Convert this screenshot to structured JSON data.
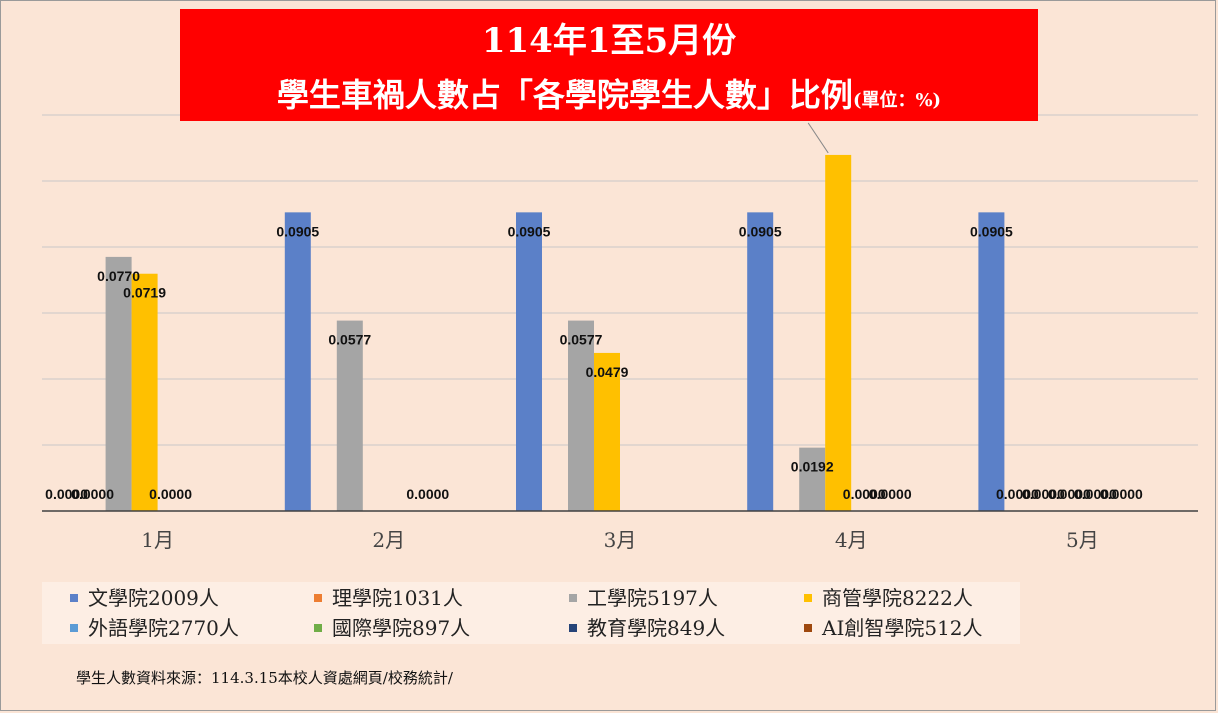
{
  "title": {
    "line1": "114年1至5月份",
    "line2": "學生車禍人數占「各學院學生人數」比例",
    "unit": "(單位：%)"
  },
  "source_note": "學生人數資料來源：114.3.15本校人資處網頁/校務統計/",
  "colors": {
    "background": "#fbe5d6",
    "title_bg": "#ff0000",
    "grid": "#c8c8c8",
    "axis": "#404040"
  },
  "chart_data": {
    "type": "bar",
    "categories": [
      "1月",
      "2月",
      "3月",
      "4月",
      "5月"
    ],
    "ylim": [
      0,
      0.12
    ],
    "grid": true,
    "legend_position": "bottom",
    "series": [
      {
        "name": "文學院2009人",
        "color": "#5b80c8",
        "values": [
          0.0,
          0.0905,
          0.0905,
          0.0905,
          0.0905
        ],
        "labels": [
          "0.0000",
          "0.0905",
          "0.0905",
          "0.0905",
          "0.0905"
        ]
      },
      {
        "name": "理學院1031人",
        "color": "#ed7d31",
        "values": [
          0.0,
          0.0,
          0.0,
          0.0,
          0.0
        ],
        "labels": [
          "0.0000",
          "",
          "",
          "",
          "0.0000"
        ]
      },
      {
        "name": "工學院5197人",
        "color": "#a5a5a5",
        "values": [
          0.077,
          0.0577,
          0.0577,
          0.0192,
          0.0
        ],
        "labels": [
          "0.0770",
          "0.0577",
          "0.0577",
          "0.0192",
          "0.0000"
        ]
      },
      {
        "name": "商管學院8222人",
        "color": "#ffc000",
        "values": [
          0.0719,
          0.0,
          0.0479,
          0.1079,
          0.0
        ],
        "labels": [
          "0.0719",
          "",
          "0.0479",
          "0.1079",
          "0.0000"
        ]
      },
      {
        "name": "外語學院2770人",
        "color": "#5b9bd5",
        "values": [
          0.0,
          0.0,
          0.0,
          0.0,
          0.0
        ],
        "labels": [
          "0.0000",
          "",
          "",
          "0.0000",
          "0.0000"
        ]
      },
      {
        "name": "國際學院897人",
        "color": "#70ad47",
        "values": [
          0.0,
          0.0,
          0.0,
          0.0,
          0.0
        ],
        "labels": [
          "",
          "0.0000",
          "",
          "0.0000",
          "0.0000"
        ]
      },
      {
        "name": "教育學院849人",
        "color": "#264478",
        "values": [
          0.0,
          0.0,
          0.0,
          0.0,
          0.0
        ],
        "labels": [
          "",
          "",
          "",
          "",
          ""
        ]
      },
      {
        "name": "AI創智學院512人",
        "color": "#9e480e",
        "values": [
          0.0,
          0.0,
          0.0,
          0.0,
          0.0
        ],
        "labels": [
          "",
          "",
          "",
          "",
          ""
        ]
      }
    ]
  }
}
